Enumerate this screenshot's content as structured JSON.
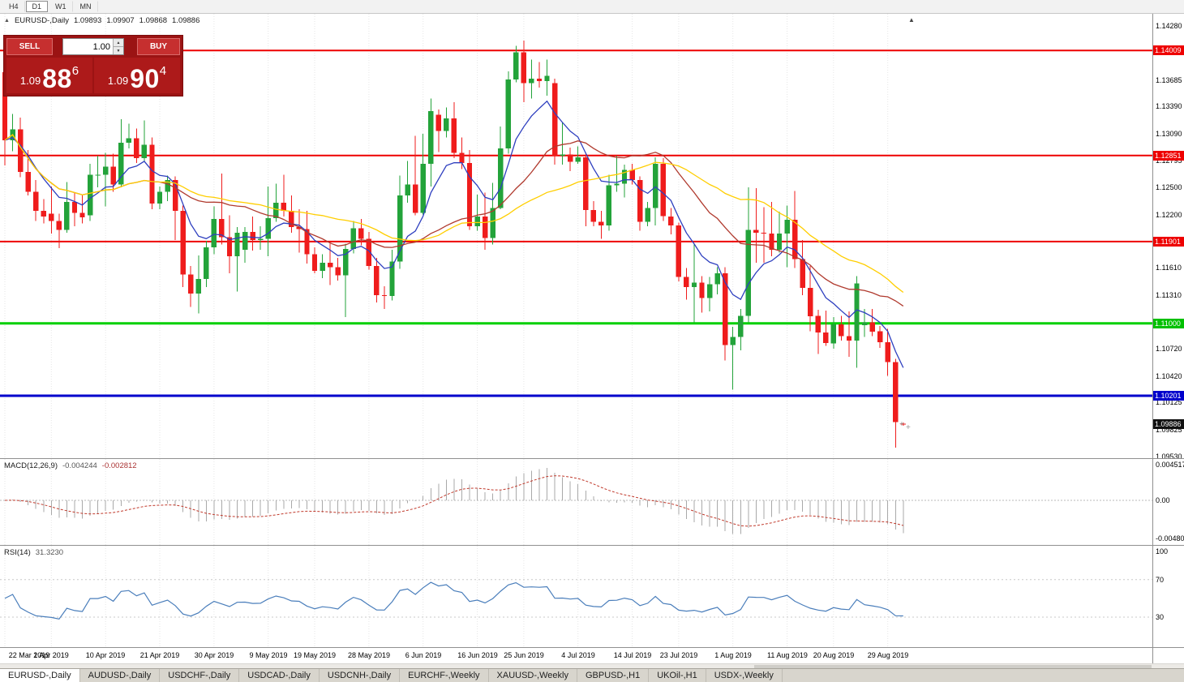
{
  "toolbar": {
    "timeframes": [
      "H4",
      "D1",
      "W1",
      "MN"
    ],
    "active": "D1"
  },
  "chart": {
    "symbol": "EURUSD-,Daily",
    "open": "1.09893",
    "high": "1.09907",
    "low": "1.09868",
    "close": "1.09886",
    "toggle_icon": "▲",
    "collapse_icon": "▲"
  },
  "trade_panel": {
    "sell_label": "SELL",
    "buy_label": "BUY",
    "volume": "1.00",
    "bid": {
      "prefix": "1.09",
      "big": "88",
      "sup": "6"
    },
    "ask": {
      "prefix": "1.09",
      "big": "90",
      "sup": "4"
    }
  },
  "colors": {
    "up": "#23a33a",
    "down": "#ef1c1c",
    "resistance": "#ee0000",
    "support_green": "#00c000",
    "support_blue": "#0000cc",
    "last_price": "#101010",
    "macd_hist": "#a9a9a9",
    "macd_signal": "#c0392b",
    "rsi_line": "#4a7ebb",
    "ma_fast": "#2e3fbf",
    "ma_mid": "#b03a2e",
    "ma_slow": "#ffce00"
  },
  "price_scale": {
    "ticks": [
      1.1428,
      1.13685,
      1.1339,
      1.1309,
      1.12795,
      1.125,
      1.122,
      1.1161,
      1.1131,
      1.1072,
      1.1042,
      1.10125,
      1.09825,
      1.0953
    ],
    "levels": [
      {
        "price": 1.14009,
        "color": "#ee0000"
      },
      {
        "price": 1.12851,
        "color": "#ee0000"
      },
      {
        "price": 1.11901,
        "color": "#ee0000"
      },
      {
        "price": 1.11,
        "color": "#00c000"
      },
      {
        "price": 1.10201,
        "color": "#0000cc"
      },
      {
        "price": 1.09886,
        "color": "#101010"
      }
    ]
  },
  "chart_data": {
    "type": "candlestick",
    "symbol": "EURUSD",
    "timeframe": "Daily",
    "ylim": [
      1.0953,
      1.1428
    ],
    "hlines": [
      {
        "price": 1.14009,
        "color": "#ee0000",
        "width": 2
      },
      {
        "price": 1.12851,
        "color": "#ee0000",
        "width": 2
      },
      {
        "price": 1.11901,
        "color": "#ee0000",
        "width": 2
      },
      {
        "price": 1.11,
        "color": "#00d000",
        "width": 3
      },
      {
        "price": 1.10201,
        "color": "#0000cc",
        "width": 3
      }
    ],
    "moving_averages": [
      {
        "period": 8,
        "type": "ema",
        "color": "#2e3fbf"
      },
      {
        "period": 21,
        "type": "sma",
        "color": "#b03a2e"
      },
      {
        "period": 34,
        "type": "sma",
        "color": "#ffce00"
      }
    ],
    "x_ticks": [
      {
        "i": 0,
        "label": "22 Mar 2019"
      },
      {
        "i": 6,
        "label": "1 Apr 2019"
      },
      {
        "i": 13,
        "label": "10 Apr 2019"
      },
      {
        "i": 20,
        "label": "21 Apr 2019"
      },
      {
        "i": 27,
        "label": "30 Apr 2019"
      },
      {
        "i": 34,
        "label": "9 May 2019"
      },
      {
        "i": 40,
        "label": "19 May 2019"
      },
      {
        "i": 47,
        "label": "28 May 2019"
      },
      {
        "i": 54,
        "label": "6 Jun 2019"
      },
      {
        "i": 61,
        "label": "16 Jun 2019"
      },
      {
        "i": 67,
        "label": "25 Jun 2019"
      },
      {
        "i": 74,
        "label": "4 Jul 2019"
      },
      {
        "i": 81,
        "label": "14 Jul 2019"
      },
      {
        "i": 87,
        "label": "23 Jul 2019"
      },
      {
        "i": 94,
        "label": "1 Aug 2019"
      },
      {
        "i": 101,
        "label": "11 Aug 2019"
      },
      {
        "i": 107,
        "label": "20 Aug 2019"
      },
      {
        "i": 114,
        "label": "29 Aug 2019"
      }
    ],
    "candles": [
      [
        "2019-03-22",
        1.1377,
        1.138,
        1.1274,
        1.1302
      ],
      [
        "2019-03-25",
        1.1302,
        1.1331,
        1.129,
        1.1314
      ],
      [
        "2019-03-26",
        1.1314,
        1.1327,
        1.1261,
        1.1267
      ],
      [
        "2019-03-27",
        1.1267,
        1.1291,
        1.1241,
        1.1245
      ],
      [
        "2019-03-28",
        1.1245,
        1.1258,
        1.1213,
        1.1224
      ],
      [
        "2019-03-29",
        1.1224,
        1.1237,
        1.121,
        1.1218
      ],
      [
        "2019-04-01",
        1.1221,
        1.1251,
        1.1199,
        1.1213
      ],
      [
        "2019-04-02",
        1.1213,
        1.1221,
        1.1183,
        1.1203
      ],
      [
        "2019-04-03",
        1.1203,
        1.1256,
        1.12,
        1.1234
      ],
      [
        "2019-04-04",
        1.1234,
        1.1244,
        1.1207,
        1.1222
      ],
      [
        "2019-04-05",
        1.1222,
        1.1241,
        1.121,
        1.1217
      ],
      [
        "2019-04-08",
        1.1219,
        1.1276,
        1.1213,
        1.1264
      ],
      [
        "2019-04-09",
        1.1264,
        1.1285,
        1.125,
        1.1264
      ],
      [
        "2019-04-10",
        1.1264,
        1.1288,
        1.1229,
        1.1273
      ],
      [
        "2019-04-11",
        1.1273,
        1.1287,
        1.1245,
        1.1253
      ],
      [
        "2019-04-12",
        1.1253,
        1.1325,
        1.125,
        1.1299
      ],
      [
        "2019-04-15",
        1.1299,
        1.132,
        1.1293,
        1.1304
      ],
      [
        "2019-04-16",
        1.1304,
        1.1315,
        1.1277,
        1.1282
      ],
      [
        "2019-04-17",
        1.1282,
        1.1324,
        1.1278,
        1.1297
      ],
      [
        "2019-04-18",
        1.1297,
        1.1305,
        1.1226,
        1.1232
      ],
      [
        "2019-04-19",
        1.1232,
        1.1251,
        1.1226,
        1.1245
      ],
      [
        "2019-04-22",
        1.1245,
        1.1263,
        1.1235,
        1.1258
      ],
      [
        "2019-04-23",
        1.1258,
        1.1262,
        1.1192,
        1.1224
      ],
      [
        "2019-04-24",
        1.1224,
        1.123,
        1.114,
        1.1154
      ],
      [
        "2019-04-25",
        1.1154,
        1.1163,
        1.1118,
        1.1133
      ],
      [
        "2019-04-26",
        1.1133,
        1.1175,
        1.1111,
        1.1149
      ],
      [
        "2019-04-29",
        1.1149,
        1.1191,
        1.114,
        1.1184
      ],
      [
        "2019-04-30",
        1.1184,
        1.1229,
        1.1176,
        1.1215
      ],
      [
        "2019-05-01",
        1.1215,
        1.1265,
        1.1187,
        1.1195
      ],
      [
        "2019-05-02",
        1.1195,
        1.1219,
        1.1155,
        1.1174
      ],
      [
        "2019-05-03",
        1.1174,
        1.1206,
        1.1135,
        1.12
      ],
      [
        "2019-05-06",
        1.1181,
        1.1206,
        1.1167,
        1.1201
      ],
      [
        "2019-05-07",
        1.1201,
        1.1218,
        1.118,
        1.1192
      ],
      [
        "2019-05-08",
        1.1192,
        1.1207,
        1.1181,
        1.1193
      ],
      [
        "2019-05-09",
        1.1193,
        1.1251,
        1.1174,
        1.1216
      ],
      [
        "2019-05-10",
        1.1216,
        1.1254,
        1.1212,
        1.1233
      ],
      [
        "2019-05-13",
        1.1233,
        1.1264,
        1.1218,
        1.1224
      ],
      [
        "2019-05-14",
        1.1224,
        1.1241,
        1.12,
        1.1206
      ],
      [
        "2019-05-15",
        1.1206,
        1.1226,
        1.1178,
        1.1204
      ],
      [
        "2019-05-16",
        1.1204,
        1.1224,
        1.1166,
        1.1176
      ],
      [
        "2019-05-17",
        1.1176,
        1.1184,
        1.1155,
        1.1158
      ],
      [
        "2019-05-20",
        1.1158,
        1.1176,
        1.115,
        1.1167
      ],
      [
        "2019-05-21",
        1.1167,
        1.1188,
        1.1142,
        1.1162
      ],
      [
        "2019-05-22",
        1.1162,
        1.1172,
        1.1147,
        1.1153
      ],
      [
        "2019-05-23",
        1.1153,
        1.1188,
        1.1107,
        1.1182
      ],
      [
        "2019-05-24",
        1.1182,
        1.1213,
        1.1177,
        1.1205
      ],
      [
        "2019-05-27",
        1.1205,
        1.1215,
        1.1186,
        1.1193
      ],
      [
        "2019-05-28",
        1.1193,
        1.1201,
        1.1159,
        1.1163
      ],
      [
        "2019-05-29",
        1.1163,
        1.1172,
        1.1123,
        1.1131
      ],
      [
        "2019-05-30",
        1.1131,
        1.1141,
        1.1116,
        1.113
      ],
      [
        "2019-05-31",
        1.113,
        1.1181,
        1.1125,
        1.1168
      ],
      [
        "2019-06-03",
        1.1168,
        1.1263,
        1.116,
        1.1241
      ],
      [
        "2019-06-04",
        1.1241,
        1.1279,
        1.1233,
        1.1253
      ],
      [
        "2019-06-05",
        1.1253,
        1.1307,
        1.1219,
        1.1222
      ],
      [
        "2019-06-06",
        1.1222,
        1.1309,
        1.122,
        1.1276
      ],
      [
        "2019-06-07",
        1.1276,
        1.1348,
        1.1251,
        1.1334
      ],
      [
        "2019-06-10",
        1.133,
        1.1336,
        1.1289,
        1.1312
      ],
      [
        "2019-06-11",
        1.1312,
        1.1338,
        1.1305,
        1.1326
      ],
      [
        "2019-06-12",
        1.1326,
        1.1344,
        1.1282,
        1.1288
      ],
      [
        "2019-06-13",
        1.1288,
        1.1305,
        1.127,
        1.1277
      ],
      [
        "2019-06-14",
        1.1277,
        1.1291,
        1.1203,
        1.1207
      ],
      [
        "2019-06-17",
        1.1207,
        1.1242,
        1.1202,
        1.1218
      ],
      [
        "2019-06-18",
        1.1218,
        1.1244,
        1.1181,
        1.1194
      ],
      [
        "2019-06-19",
        1.1194,
        1.1255,
        1.1187,
        1.1227
      ],
      [
        "2019-06-20",
        1.1227,
        1.1317,
        1.1226,
        1.1293
      ],
      [
        "2019-06-21",
        1.1293,
        1.1378,
        1.1287,
        1.1369
      ],
      [
        "2019-06-24",
        1.1369,
        1.1406,
        1.1366,
        1.1399
      ],
      [
        "2019-06-25",
        1.1399,
        1.1412,
        1.1344,
        1.1365
      ],
      [
        "2019-06-26",
        1.1365,
        1.1391,
        1.1348,
        1.137
      ],
      [
        "2019-06-27",
        1.137,
        1.1388,
        1.136,
        1.1367
      ],
      [
        "2019-06-28",
        1.1367,
        1.1391,
        1.1351,
        1.1373
      ],
      [
        "2019-07-01",
        1.1365,
        1.137,
        1.1275,
        1.1285
      ],
      [
        "2019-07-02",
        1.1285,
        1.1322,
        1.1275,
        1.1286
      ],
      [
        "2019-07-03",
        1.1286,
        1.1294,
        1.1268,
        1.1278
      ],
      [
        "2019-07-04",
        1.1278,
        1.1295,
        1.1276,
        1.1283
      ],
      [
        "2019-07-05",
        1.1283,
        1.1288,
        1.1207,
        1.1225
      ],
      [
        "2019-07-08",
        1.1225,
        1.1235,
        1.1207,
        1.1212
      ],
      [
        "2019-07-09",
        1.1212,
        1.1224,
        1.1193,
        1.1208
      ],
      [
        "2019-07-10",
        1.1208,
        1.1264,
        1.1202,
        1.1252
      ],
      [
        "2019-07-11",
        1.1252,
        1.1285,
        1.1245,
        1.1254
      ],
      [
        "2019-07-12",
        1.1254,
        1.1275,
        1.1239,
        1.1269
      ],
      [
        "2019-07-15",
        1.1269,
        1.1276,
        1.1253,
        1.1258
      ],
      [
        "2019-07-16",
        1.1258,
        1.1262,
        1.1202,
        1.1212
      ],
      [
        "2019-07-17",
        1.1212,
        1.1234,
        1.1207,
        1.1227
      ],
      [
        "2019-07-18",
        1.1227,
        1.1283,
        1.1208,
        1.1276
      ],
      [
        "2019-07-19",
        1.1276,
        1.1282,
        1.1213,
        1.1218
      ],
      [
        "2019-07-22",
        1.1218,
        1.1227,
        1.1198,
        1.1208
      ],
      [
        "2019-07-23",
        1.1208,
        1.1211,
        1.1146,
        1.1151
      ],
      [
        "2019-07-24",
        1.1151,
        1.1161,
        1.1126,
        1.114
      ],
      [
        "2019-07-25",
        1.114,
        1.1187,
        1.1101,
        1.1145
      ],
      [
        "2019-07-26",
        1.1145,
        1.1152,
        1.1112,
        1.1128
      ],
      [
        "2019-07-29",
        1.1128,
        1.1151,
        1.1113,
        1.1143
      ],
      [
        "2019-07-30",
        1.1143,
        1.1162,
        1.1132,
        1.1155
      ],
      [
        "2019-07-31",
        1.1155,
        1.1162,
        1.1059,
        1.1076
      ],
      [
        "2019-08-01",
        1.1076,
        1.1096,
        1.1027,
        1.1085
      ],
      [
        "2019-08-02",
        1.1085,
        1.1116,
        1.107,
        1.1108
      ],
      [
        "2019-08-05",
        1.1108,
        1.125,
        1.1101,
        1.1203
      ],
      [
        "2019-08-06",
        1.1203,
        1.1249,
        1.1167,
        1.12
      ],
      [
        "2019-08-07",
        1.12,
        1.1228,
        1.1167,
        1.1199
      ],
      [
        "2019-08-08",
        1.1199,
        1.1234,
        1.1174,
        1.1181
      ],
      [
        "2019-08-09",
        1.1181,
        1.1223,
        1.1178,
        1.1199
      ],
      [
        "2019-08-12",
        1.1199,
        1.123,
        1.1162,
        1.1214
      ],
      [
        "2019-08-13",
        1.1214,
        1.1246,
        1.1161,
        1.1171
      ],
      [
        "2019-08-14",
        1.1171,
        1.1192,
        1.1131,
        1.1139
      ],
      [
        "2019-08-15",
        1.1139,
        1.1163,
        1.1091,
        1.1108
      ],
      [
        "2019-08-16",
        1.1108,
        1.1115,
        1.1066,
        1.109
      ],
      [
        "2019-08-19",
        1.109,
        1.1114,
        1.1075,
        1.1078
      ],
      [
        "2019-08-20",
        1.1078,
        1.1107,
        1.1072,
        1.1099
      ],
      [
        "2019-08-21",
        1.1099,
        1.1108,
        1.1081,
        1.1086
      ],
      [
        "2019-08-22",
        1.1086,
        1.1113,
        1.1063,
        1.1081
      ],
      [
        "2019-08-23",
        1.1081,
        1.1152,
        1.1051,
        1.1144
      ],
      [
        "2019-08-26",
        1.1098,
        1.1116,
        1.1085,
        1.1101
      ],
      [
        "2019-08-27",
        1.1101,
        1.1116,
        1.1086,
        1.1091
      ],
      [
        "2019-08-28",
        1.1091,
        1.1097,
        1.1073,
        1.1079
      ],
      [
        "2019-08-29",
        1.1079,
        1.1094,
        1.1042,
        1.1057
      ],
      [
        "2019-08-30",
        1.1057,
        1.1061,
        1.0963,
        1.0991
      ],
      [
        "2019-09-02",
        1.09893,
        1.09907,
        1.09868,
        1.09886
      ]
    ]
  },
  "macd": {
    "label": "MACD(12,26,9)",
    "value_main": "-0.004244",
    "value_signal": "-0.002812",
    "fast": 12,
    "slow": 26,
    "signal": 9,
    "range": 0.004517,
    "scale": [
      "0.004517",
      "0.00",
      "-0.00480"
    ]
  },
  "rsi": {
    "label": "RSI(14)",
    "value": "31.3230",
    "period": 14,
    "scale": [
      "100",
      "70",
      "30"
    ],
    "level_lines": [
      70,
      30
    ]
  },
  "tabs": [
    {
      "label": "EURUSD-,Daily",
      "active": true
    },
    {
      "label": "AUDUSD-,Daily"
    },
    {
      "label": "USDCHF-,Daily"
    },
    {
      "label": "USDCAD-,Daily"
    },
    {
      "label": "USDCNH-,Daily"
    },
    {
      "label": "EURCHF-,Weekly"
    },
    {
      "label": "XAUUSD-,Weekly"
    },
    {
      "label": "GBPUSD-,H1"
    },
    {
      "label": "UKOil-,H1"
    },
    {
      "label": "USDX-,Weekly"
    }
  ]
}
